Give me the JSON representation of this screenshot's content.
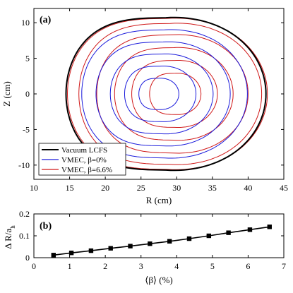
{
  "chart_data": [
    {
      "panel": "(a)",
      "type": "line",
      "xlabel": "R (cm)",
      "ylabel": "Z (cm)",
      "xlim": [
        10,
        45
      ],
      "ylim": [
        -12,
        12
      ],
      "xticks": [
        10,
        15,
        20,
        25,
        30,
        35,
        40,
        45
      ],
      "yticks": [
        -10,
        -5,
        0,
        5,
        10
      ],
      "grid": false,
      "legend_position": "bottom-left",
      "series": [
        {
          "name": "Vacuum LCFS",
          "color": "#000000",
          "contours": [
            {
              "R0": 28.5,
              "a": 14.0,
              "b": 10.7
            }
          ]
        },
        {
          "name": "VMEC, β=0%",
          "color": "#1a1adb",
          "contours": [
            {
              "R0": 28.5,
              "a": 14.0,
              "b": 10.7
            },
            {
              "R0": 28.3,
              "a": 11.6,
              "b": 9.0
            },
            {
              "R0": 28.1,
              "a": 9.4,
              "b": 7.3
            },
            {
              "R0": 27.9,
              "a": 7.2,
              "b": 5.6
            },
            {
              "R0": 27.7,
              "a": 5.0,
              "b": 3.9
            },
            {
              "R0": 27.5,
              "a": 2.8,
              "b": 2.2
            }
          ]
        },
        {
          "name": "VMEC, β=6.6%",
          "color": "#d01818",
          "contours": [
            {
              "R0": 28.7,
              "a": 14.0,
              "b": 10.6
            },
            {
              "R0": 29.1,
              "a": 12.8,
              "b": 9.9
            },
            {
              "R0": 29.4,
              "a": 10.6,
              "b": 8.3
            },
            {
              "R0": 29.6,
              "a": 8.3,
              "b": 6.5
            },
            {
              "R0": 29.7,
              "a": 6.0,
              "b": 4.7
            },
            {
              "R0": 29.8,
              "a": 3.6,
              "b": 2.9
            }
          ]
        }
      ]
    },
    {
      "panel": "(b)",
      "type": "line",
      "xlabel": "⟨β⟩ (%)",
      "ylabel": "Δ R/a_h",
      "xlim": [
        0,
        7
      ],
      "ylim": [
        0,
        0.2
      ],
      "xticks": [
        0,
        1,
        2,
        3,
        4,
        5,
        6,
        7
      ],
      "yticks": [
        0,
        0.1,
        0.2
      ],
      "grid": false,
      "series": [
        {
          "name": "",
          "x": [
            0.55,
            1.05,
            1.6,
            2.15,
            2.7,
            3.25,
            3.8,
            4.35,
            4.9,
            5.45,
            6.05,
            6.6
          ],
          "y": [
            0.012,
            0.022,
            0.032,
            0.043,
            0.053,
            0.064,
            0.075,
            0.087,
            0.1,
            0.114,
            0.128,
            0.141
          ]
        }
      ]
    }
  ]
}
